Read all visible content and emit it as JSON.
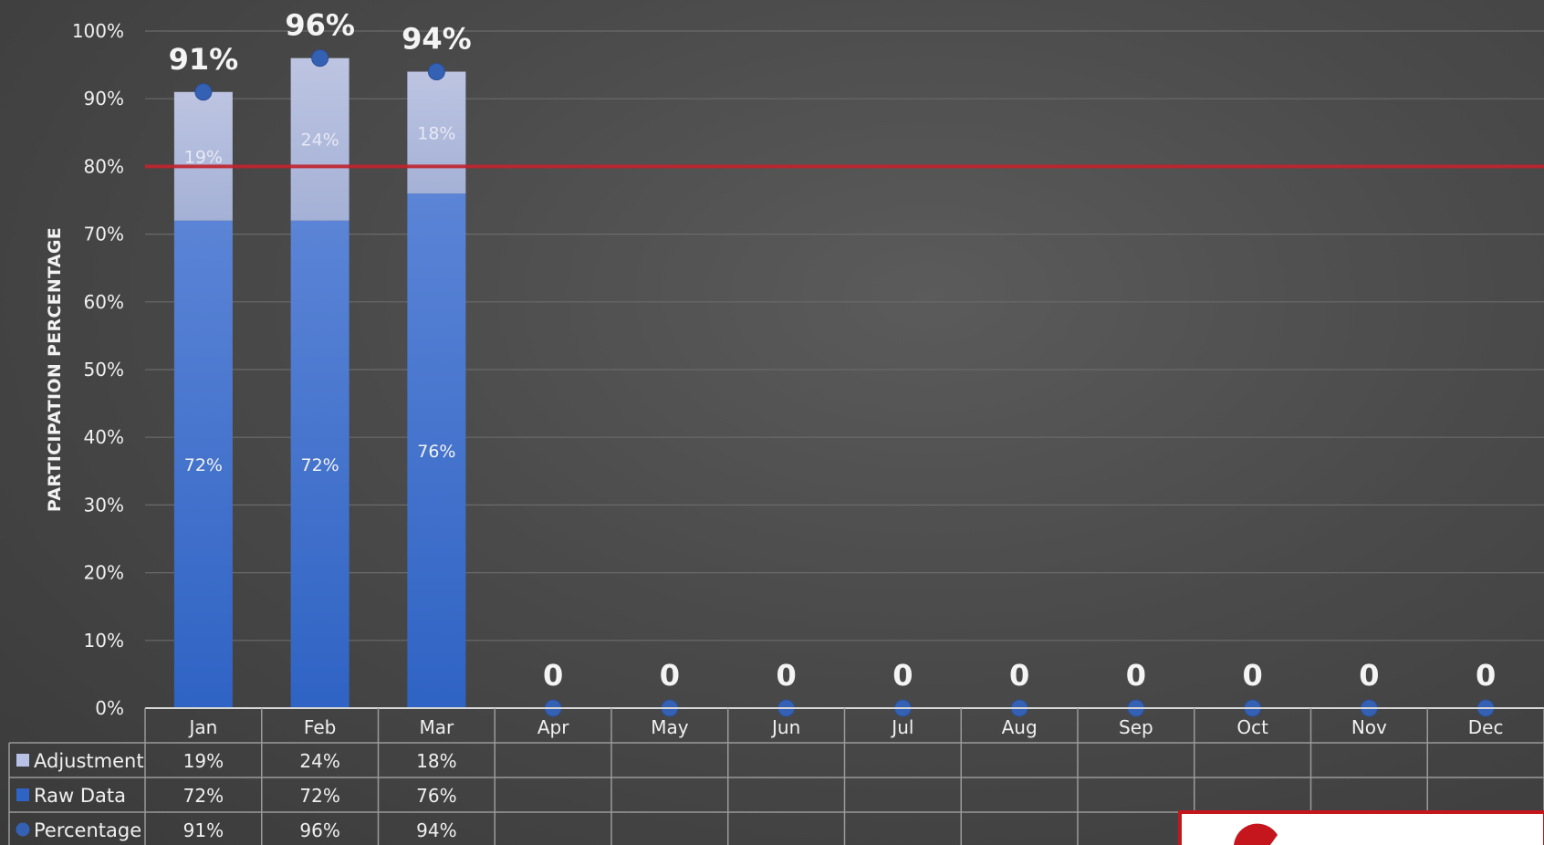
{
  "chart_data": {
    "type": "bar",
    "stacked": true,
    "ylabel": "PARTICIPATION PERCENTAGE",
    "xlabel": "",
    "ylim": [
      0,
      100
    ],
    "yticks": [
      "0%",
      "10%",
      "20%",
      "30%",
      "40%",
      "50%",
      "60%",
      "70%",
      "80%",
      "90%",
      "100%"
    ],
    "categories": [
      "Jan",
      "Feb",
      "Mar",
      "Apr",
      "May",
      "Jun",
      "Jul",
      "Aug",
      "Sep",
      "Oct",
      "Nov",
      "Dec"
    ],
    "series": [
      {
        "name": "Raw Data",
        "kind": "bar",
        "values": [
          72,
          72,
          76,
          null,
          null,
          null,
          null,
          null,
          null,
          null,
          null,
          null
        ],
        "labels": [
          "72%",
          "72%",
          "76%",
          "",
          "",
          "",
          "",
          "",
          "",
          "",
          "",
          ""
        ]
      },
      {
        "name": "Adjustment",
        "kind": "bar",
        "values": [
          19,
          24,
          18,
          null,
          null,
          null,
          null,
          null,
          null,
          null,
          null,
          null
        ],
        "labels": [
          "19%",
          "24%",
          "18%",
          "",
          "",
          "",
          "",
          "",
          "",
          "",
          "",
          ""
        ]
      },
      {
        "name": "Percentage",
        "kind": "point",
        "values": [
          91,
          96,
          94,
          0,
          0,
          0,
          0,
          0,
          0,
          0,
          0,
          0
        ],
        "labels": [
          "91%",
          "96%",
          "94%",
          "0",
          "0",
          "0",
          "0",
          "0",
          "0",
          "0",
          "0",
          "0"
        ]
      }
    ],
    "target_line": 80,
    "data_table": true,
    "legend_placement": "data-table",
    "grid": true,
    "colors": {
      "raw_top": "#5b84d6",
      "raw_bottom": "#2f63c4",
      "adjustment": "#b7c2e6",
      "point": "#3561b5",
      "target": "#c0232c",
      "grid": "#6a6a6a",
      "table_line": "#9a9a9a",
      "frame": "#c4161c"
    }
  }
}
